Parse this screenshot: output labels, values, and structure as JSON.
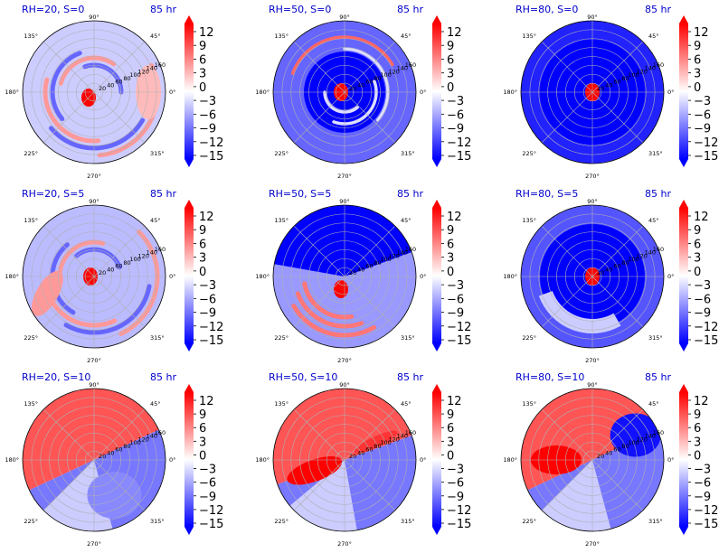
{
  "chart_data": {
    "type": "heatmap",
    "projection": "polar",
    "layout": {
      "rows": 3,
      "cols": 3
    },
    "angle_tick_labels": [
      "0°",
      "45°",
      "90°",
      "135°",
      "180°",
      "225°",
      "270°",
      "315°"
    ],
    "radius_tick_labels": [
      "20",
      "40",
      "60",
      "80",
      "100",
      "120",
      "140",
      "160"
    ],
    "colorbar": {
      "ticks": [
        "12",
        "9",
        "6",
        "3",
        "0",
        "−3",
        "−6",
        "−9",
        "−12",
        "−15"
      ],
      "range": [
        -15,
        15
      ],
      "extend": "both",
      "colormap": "bwr",
      "colors": {
        "neg": "#0000ff",
        "mid": "#ffffff",
        "pos": "#ff0000"
      }
    },
    "grid": true,
    "panels": [
      {
        "title": "RH=20, S=0",
        "time": "85 hr",
        "background_value": -3,
        "pattern": "spiral"
      },
      {
        "title": "RH=50, S=0",
        "time": "85 hr",
        "background_value": -9,
        "pattern": "rings"
      },
      {
        "title": "RH=80, S=0",
        "time": "85 hr",
        "background_value": -13,
        "pattern": "core"
      },
      {
        "title": "RH=20, S=5",
        "time": "85 hr",
        "background_value": -4,
        "pattern": "spiral"
      },
      {
        "title": "RH=50, S=5",
        "time": "85 hr",
        "background_value": -6,
        "pattern": "half"
      },
      {
        "title": "RH=80, S=5",
        "time": "85 hr",
        "background_value": -10,
        "pattern": "core"
      },
      {
        "title": "RH=20, S=10",
        "time": "85 hr",
        "background_value": 0,
        "pattern": "dipole"
      },
      {
        "title": "RH=50, S=10",
        "time": "85 hr",
        "background_value": 0,
        "pattern": "dipole"
      },
      {
        "title": "RH=80, S=10",
        "time": "85 hr",
        "background_value": 0,
        "pattern": "dipole"
      }
    ]
  }
}
